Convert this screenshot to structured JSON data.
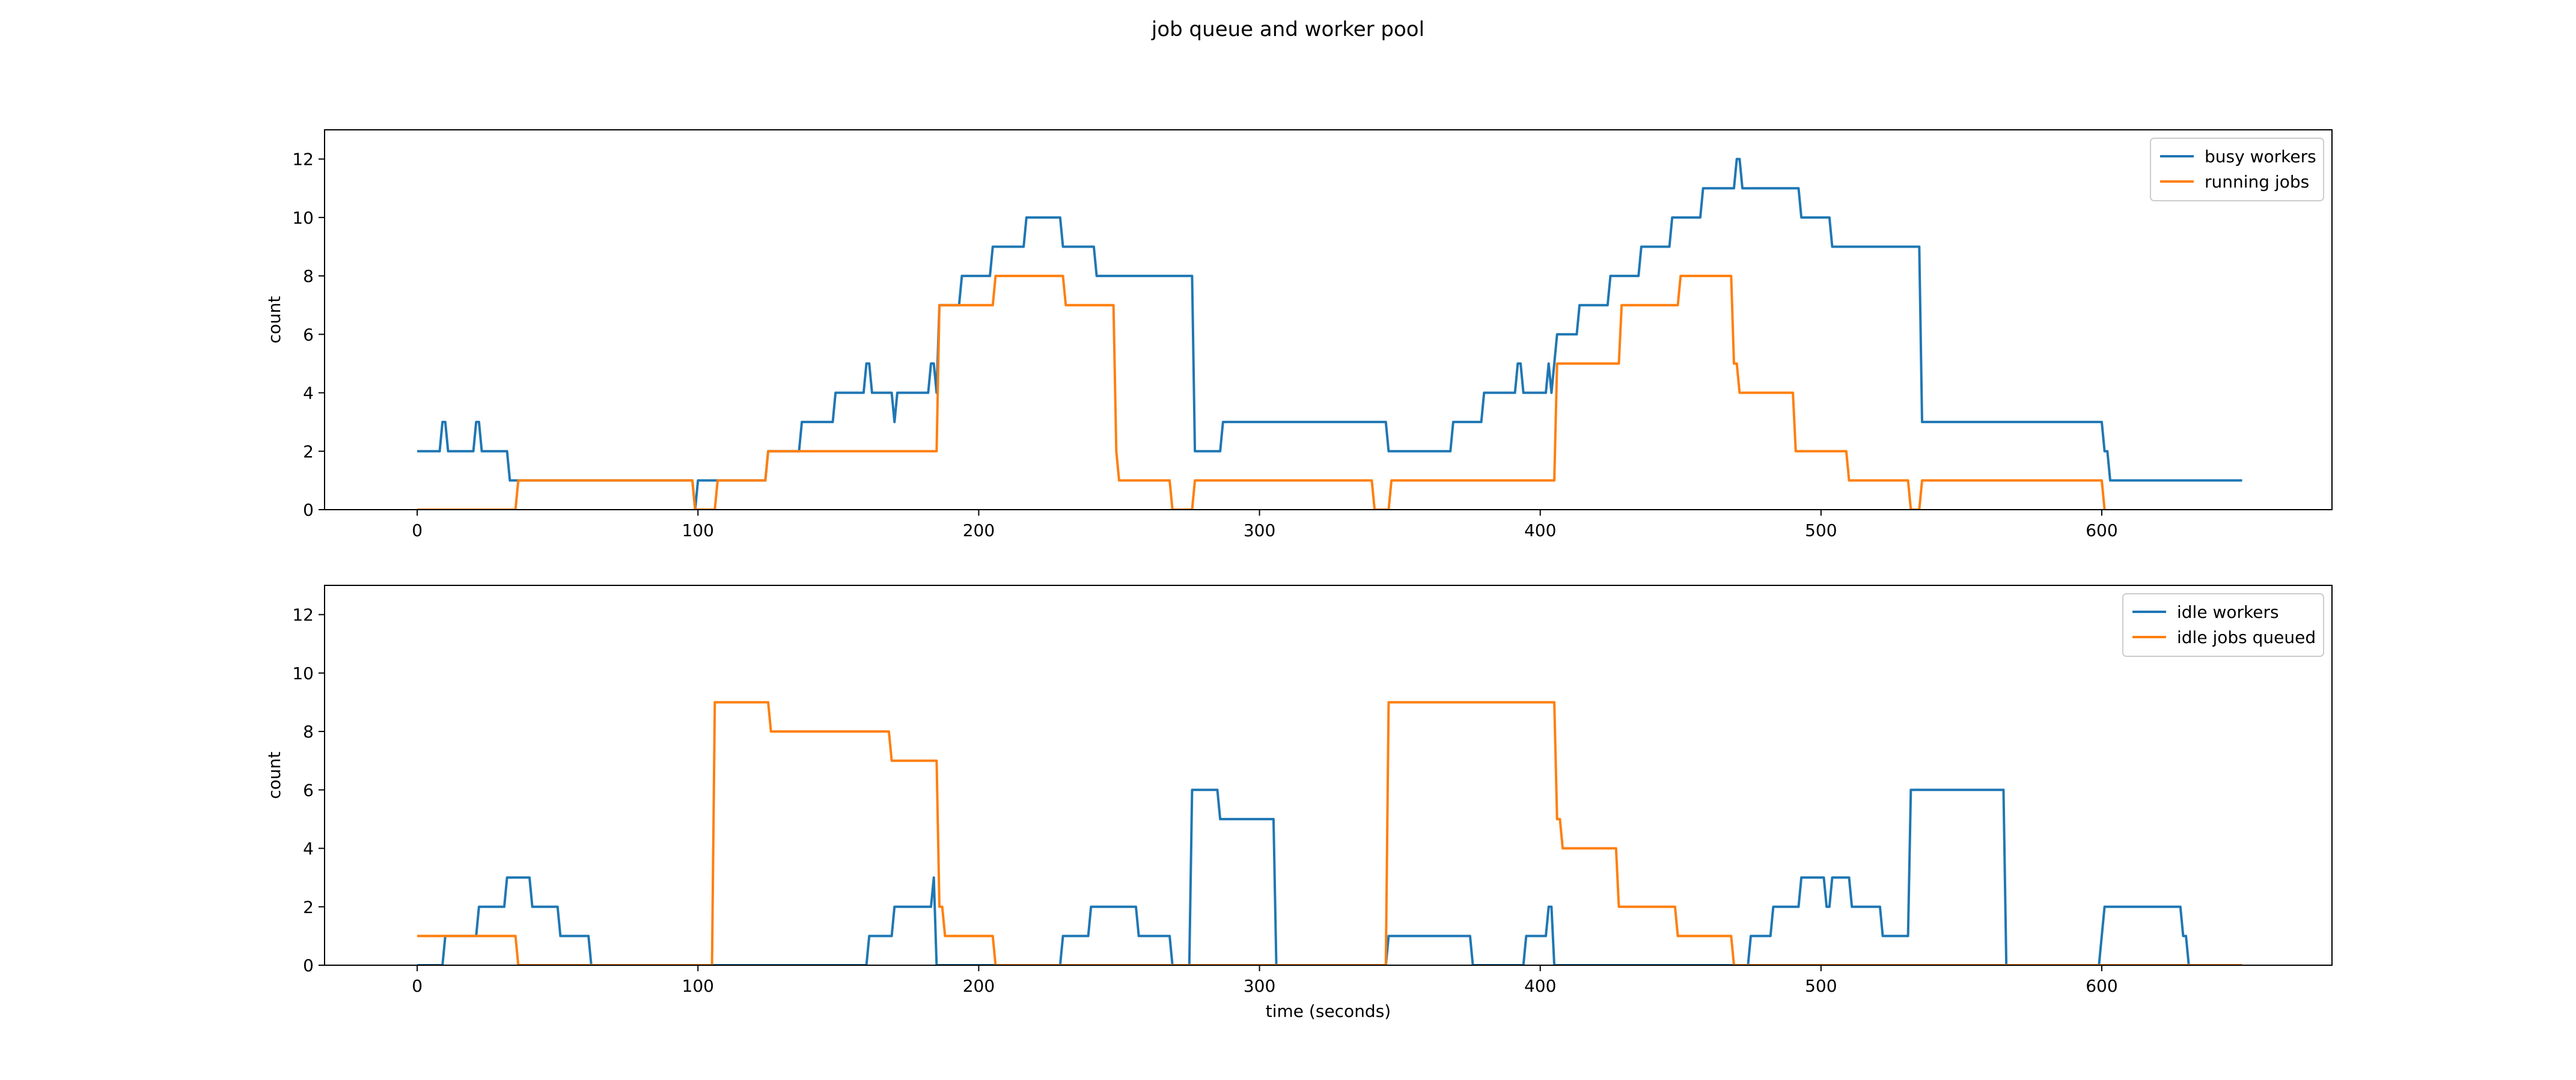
{
  "chart_data": {
    "type": "line",
    "title": "job queue and worker pool",
    "colors": {
      "series1": "#1f77b4",
      "series2": "#ff7f0e",
      "frame": "#000000",
      "background": "#ffffff"
    },
    "grid": false,
    "shared_xlabel": "time (seconds)",
    "subplots": [
      {
        "ylabel": "count",
        "xlim": [
          -33,
          682
        ],
        "ylim": [
          0,
          13
        ],
        "xticks": [
          "0",
          "100",
          "200",
          "300",
          "400",
          "500",
          "600"
        ],
        "xtick_values": [
          0,
          100,
          200,
          300,
          400,
          500,
          600
        ],
        "yticks": [
          "0",
          "2",
          "4",
          "6",
          "8",
          "10",
          "12"
        ],
        "ytick_values": [
          0,
          2,
          4,
          6,
          8,
          10,
          12
        ],
        "legend_position": "top-right",
        "series": [
          {
            "name": "busy workers",
            "color": "#1f77b4",
            "points": [
              [
                0,
                2
              ],
              [
                8,
                2
              ],
              [
                9,
                3
              ],
              [
                10,
                3
              ],
              [
                11,
                2
              ],
              [
                20,
                2
              ],
              [
                21,
                3
              ],
              [
                22,
                3
              ],
              [
                23,
                2
              ],
              [
                32,
                2
              ],
              [
                33,
                1
              ],
              [
                98,
                1
              ],
              [
                99,
                0
              ],
              [
                100,
                1
              ],
              [
                124,
                1
              ],
              [
                125,
                2
              ],
              [
                136,
                2
              ],
              [
                137,
                3
              ],
              [
                148,
                3
              ],
              [
                149,
                4
              ],
              [
                159,
                4
              ],
              [
                160,
                5
              ],
              [
                161,
                5
              ],
              [
                162,
                4
              ],
              [
                169,
                4
              ],
              [
                170,
                3
              ],
              [
                171,
                4
              ],
              [
                182,
                4
              ],
              [
                183,
                5
              ],
              [
                184,
                5
              ],
              [
                185,
                4
              ],
              [
                186,
                7
              ],
              [
                193,
                7
              ],
              [
                194,
                8
              ],
              [
                204,
                8
              ],
              [
                205,
                9
              ],
              [
                216,
                9
              ],
              [
                217,
                10
              ],
              [
                229,
                10
              ],
              [
                230,
                9
              ],
              [
                241,
                9
              ],
              [
                242,
                8
              ],
              [
                276,
                8
              ],
              [
                277,
                2
              ],
              [
                286,
                2
              ],
              [
                287,
                3
              ],
              [
                345,
                3
              ],
              [
                346,
                2
              ],
              [
                368,
                2
              ],
              [
                369,
                3
              ],
              [
                379,
                3
              ],
              [
                380,
                4
              ],
              [
                391,
                4
              ],
              [
                392,
                5
              ],
              [
                393,
                5
              ],
              [
                394,
                4
              ],
              [
                402,
                4
              ],
              [
                403,
                5
              ],
              [
                404,
                4
              ],
              [
                405,
                5
              ],
              [
                406,
                6
              ],
              [
                413,
                6
              ],
              [
                414,
                7
              ],
              [
                424,
                7
              ],
              [
                425,
                8
              ],
              [
                435,
                8
              ],
              [
                436,
                9
              ],
              [
                446,
                9
              ],
              [
                447,
                10
              ],
              [
                457,
                10
              ],
              [
                458,
                11
              ],
              [
                469,
                11
              ],
              [
                470,
                12
              ],
              [
                471,
                12
              ],
              [
                472,
                11
              ],
              [
                492,
                11
              ],
              [
                493,
                10
              ],
              [
                503,
                10
              ],
              [
                504,
                9
              ],
              [
                535,
                9
              ],
              [
                536,
                3
              ],
              [
                600,
                3
              ],
              [
                601,
                2
              ],
              [
                602,
                2
              ],
              [
                603,
                1
              ],
              [
                650,
                1
              ]
            ]
          },
          {
            "name": "running jobs",
            "color": "#ff7f0e",
            "points": [
              [
                0,
                0
              ],
              [
                35,
                0
              ],
              [
                36,
                1
              ],
              [
                98,
                1
              ],
              [
                99,
                0
              ],
              [
                106,
                0
              ],
              [
                107,
                1
              ],
              [
                124,
                1
              ],
              [
                125,
                2
              ],
              [
                185,
                2
              ],
              [
                186,
                7
              ],
              [
                205,
                7
              ],
              [
                206,
                8
              ],
              [
                230,
                8
              ],
              [
                231,
                7
              ],
              [
                248,
                7
              ],
              [
                249,
                2
              ],
              [
                250,
                1
              ],
              [
                268,
                1
              ],
              [
                269,
                0
              ],
              [
                276,
                0
              ],
              [
                277,
                1
              ],
              [
                340,
                1
              ],
              [
                341,
                0
              ],
              [
                346,
                0
              ],
              [
                347,
                1
              ],
              [
                405,
                1
              ],
              [
                406,
                5
              ],
              [
                428,
                5
              ],
              [
                429,
                7
              ],
              [
                449,
                7
              ],
              [
                450,
                8
              ],
              [
                468,
                8
              ],
              [
                469,
                5
              ],
              [
                470,
                5
              ],
              [
                471,
                4
              ],
              [
                490,
                4
              ],
              [
                491,
                2
              ],
              [
                509,
                2
              ],
              [
                510,
                1
              ],
              [
                531,
                1
              ],
              [
                532,
                0
              ],
              [
                535,
                0
              ],
              [
                536,
                1
              ],
              [
                600,
                1
              ],
              [
                601,
                0
              ]
            ]
          }
        ]
      },
      {
        "ylabel": "count",
        "xlabel": "time (seconds)",
        "xlim": [
          -33,
          682
        ],
        "ylim": [
          0,
          13
        ],
        "xticks": [
          "0",
          "100",
          "200",
          "300",
          "400",
          "500",
          "600"
        ],
        "xtick_values": [
          0,
          100,
          200,
          300,
          400,
          500,
          600
        ],
        "yticks": [
          "0",
          "2",
          "4",
          "6",
          "8",
          "10",
          "12"
        ],
        "ytick_values": [
          0,
          2,
          4,
          6,
          8,
          10,
          12
        ],
        "legend_position": "top-right",
        "series": [
          {
            "name": "idle workers",
            "color": "#1f77b4",
            "points": [
              [
                0,
                0
              ],
              [
                9,
                0
              ],
              [
                10,
                1
              ],
              [
                21,
                1
              ],
              [
                22,
                2
              ],
              [
                31,
                2
              ],
              [
                32,
                3
              ],
              [
                40,
                3
              ],
              [
                41,
                2
              ],
              [
                50,
                2
              ],
              [
                51,
                1
              ],
              [
                61,
                1
              ],
              [
                62,
                0
              ],
              [
                160,
                0
              ],
              [
                161,
                1
              ],
              [
                169,
                1
              ],
              [
                170,
                2
              ],
              [
                182,
                2
              ],
              [
                183,
                2
              ],
              [
                184,
                3
              ],
              [
                185,
                0
              ],
              [
                229,
                0
              ],
              [
                230,
                1
              ],
              [
                239,
                1
              ],
              [
                240,
                2
              ],
              [
                256,
                2
              ],
              [
                257,
                1
              ],
              [
                268,
                1
              ],
              [
                269,
                0
              ],
              [
                275,
                0
              ],
              [
                276,
                6
              ],
              [
                285,
                6
              ],
              [
                286,
                5
              ],
              [
                305,
                5
              ],
              [
                306,
                0
              ],
              [
                345,
                0
              ],
              [
                346,
                1
              ],
              [
                375,
                1
              ],
              [
                376,
                0
              ],
              [
                394,
                0
              ],
              [
                395,
                1
              ],
              [
                402,
                1
              ],
              [
                403,
                2
              ],
              [
                404,
                2
              ],
              [
                405,
                0
              ],
              [
                474,
                0
              ],
              [
                475,
                1
              ],
              [
                482,
                1
              ],
              [
                483,
                2
              ],
              [
                492,
                2
              ],
              [
                493,
                3
              ],
              [
                501,
                3
              ],
              [
                502,
                2
              ],
              [
                503,
                2
              ],
              [
                504,
                3
              ],
              [
                510,
                3
              ],
              [
                511,
                2
              ],
              [
                521,
                2
              ],
              [
                522,
                1
              ],
              [
                530,
                1
              ],
              [
                531,
                1
              ],
              [
                532,
                6
              ],
              [
                565,
                6
              ],
              [
                566,
                0
              ],
              [
                599,
                0
              ],
              [
                600,
                1
              ],
              [
                601,
                2
              ],
              [
                628,
                2
              ],
              [
                629,
                1
              ],
              [
                630,
                1
              ],
              [
                631,
                0
              ]
            ]
          },
          {
            "name": "idle jobs queued",
            "color": "#ff7f0e",
            "points": [
              [
                0,
                1
              ],
              [
                35,
                1
              ],
              [
                36,
                0
              ],
              [
                105,
                0
              ],
              [
                106,
                9
              ],
              [
                125,
                9
              ],
              [
                126,
                8
              ],
              [
                168,
                8
              ],
              [
                169,
                7
              ],
              [
                185,
                7
              ],
              [
                186,
                2
              ],
              [
                187,
                2
              ],
              [
                188,
                1
              ],
              [
                205,
                1
              ],
              [
                206,
                0
              ],
              [
                345,
                0
              ],
              [
                346,
                9
              ],
              [
                405,
                9
              ],
              [
                406,
                5
              ],
              [
                407,
                5
              ],
              [
                408,
                4
              ],
              [
                427,
                4
              ],
              [
                428,
                2
              ],
              [
                448,
                2
              ],
              [
                449,
                1
              ],
              [
                468,
                1
              ],
              [
                469,
                0
              ],
              [
                650,
                0
              ]
            ]
          }
        ]
      }
    ]
  }
}
